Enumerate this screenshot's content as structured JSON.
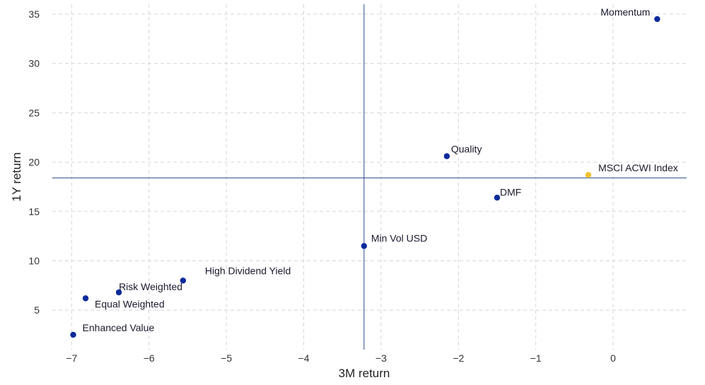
{
  "chart_data": {
    "type": "scatter",
    "title": "",
    "xlabel": "3M return",
    "ylabel": "1Y return",
    "xlim": [
      -7.25,
      0.95
    ],
    "ylim": [
      1.0,
      36.0
    ],
    "x_ticks": [
      -7,
      -6,
      -5,
      -4,
      -3,
      -2,
      -1,
      0
    ],
    "y_ticks": [
      5,
      10,
      15,
      20,
      25,
      30,
      35
    ],
    "x_tick_labels": [
      "−7",
      "−6",
      "−5",
      "−4",
      "−3",
      "−2",
      "−1",
      "0"
    ],
    "y_tick_labels": [
      "5",
      "10",
      "15",
      "20",
      "25",
      "30",
      "35"
    ],
    "grid": true,
    "reference_lines": {
      "x": -3.22,
      "y": 18.4
    },
    "colors": {
      "point": "#0a2a9c",
      "benchmark": "#f2c230",
      "reference": "#2e4a8a",
      "grid": "#d4d6da"
    },
    "points": [
      {
        "label": "Momentum",
        "x": 0.57,
        "y": 34.5,
        "benchmark": false
      },
      {
        "label": "Quality",
        "x": -2.15,
        "y": 20.6,
        "benchmark": false
      },
      {
        "label": "MSCI ACWI Index",
        "x": -0.32,
        "y": 18.7,
        "benchmark": true
      },
      {
        "label": "DMF",
        "x": -1.5,
        "y": 16.4,
        "benchmark": false
      },
      {
        "label": "Min Vol USD",
        "x": -3.22,
        "y": 11.5,
        "benchmark": false
      },
      {
        "label": "High Dividend Yield",
        "x": -5.56,
        "y": 8.0,
        "benchmark": false
      },
      {
        "label": "Risk Weighted",
        "x": -6.39,
        "y": 6.8,
        "benchmark": false
      },
      {
        "label": "Equal Weighted",
        "x": -6.82,
        "y": 6.2,
        "benchmark": false
      },
      {
        "label": "Enhanced Value",
        "x": -6.98,
        "y": 2.5,
        "benchmark": false
      }
    ]
  }
}
